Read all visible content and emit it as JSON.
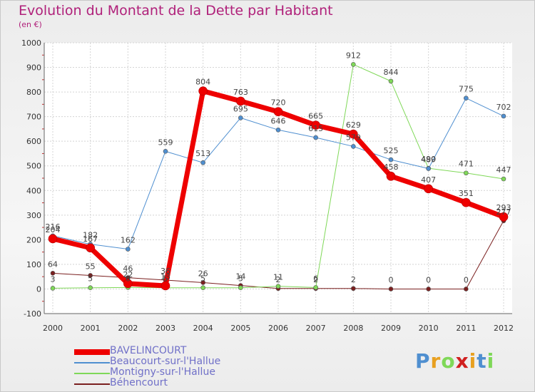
{
  "title": "Evolution du Montant de la Dette par Habitant",
  "unit": "(en €)",
  "logo_text": "Proxiti",
  "chart_data": {
    "type": "line",
    "title": "Evolution du Montant de la Dette par Habitant",
    "ylabel": "(en €)",
    "x": [
      "2000",
      "2001",
      "2002",
      "2003",
      "2004",
      "2005",
      "2006",
      "2007",
      "2008",
      "2009",
      "2010",
      "2011",
      "2012"
    ],
    "ylim": [
      -100,
      1000
    ],
    "yticks": [
      -100,
      0,
      100,
      200,
      300,
      400,
      500,
      600,
      700,
      800,
      900,
      1000
    ],
    "grid": true,
    "legend_position": "bottom-left",
    "series": [
      {
        "name": "BAVELINCOURT",
        "color": "#ee0000",
        "values": [
          204,
          167,
          22,
          13,
          804,
          763,
          720,
          665,
          629,
          458,
          407,
          351,
          293
        ]
      },
      {
        "name": "Beaucourt-sur-l'Hallue",
        "color": "#4f8fd0",
        "values": [
          216,
          182,
          162,
          559,
          513,
          695,
          646,
          615,
          579,
          525,
          489,
          775,
          702
        ]
      },
      {
        "name": "Montigny-sur-l'Hallue",
        "color": "#7fd858",
        "values": [
          3,
          5,
          6,
          5,
          5,
          5,
          11,
          6,
          912,
          844,
          490,
          471,
          447
        ]
      },
      {
        "name": "Béhencourt",
        "color": "#7a1f1f",
        "values": [
          64,
          55,
          46,
          36,
          26,
          14,
          2,
          2,
          2,
          0,
          0,
          0,
          277
        ]
      }
    ]
  }
}
